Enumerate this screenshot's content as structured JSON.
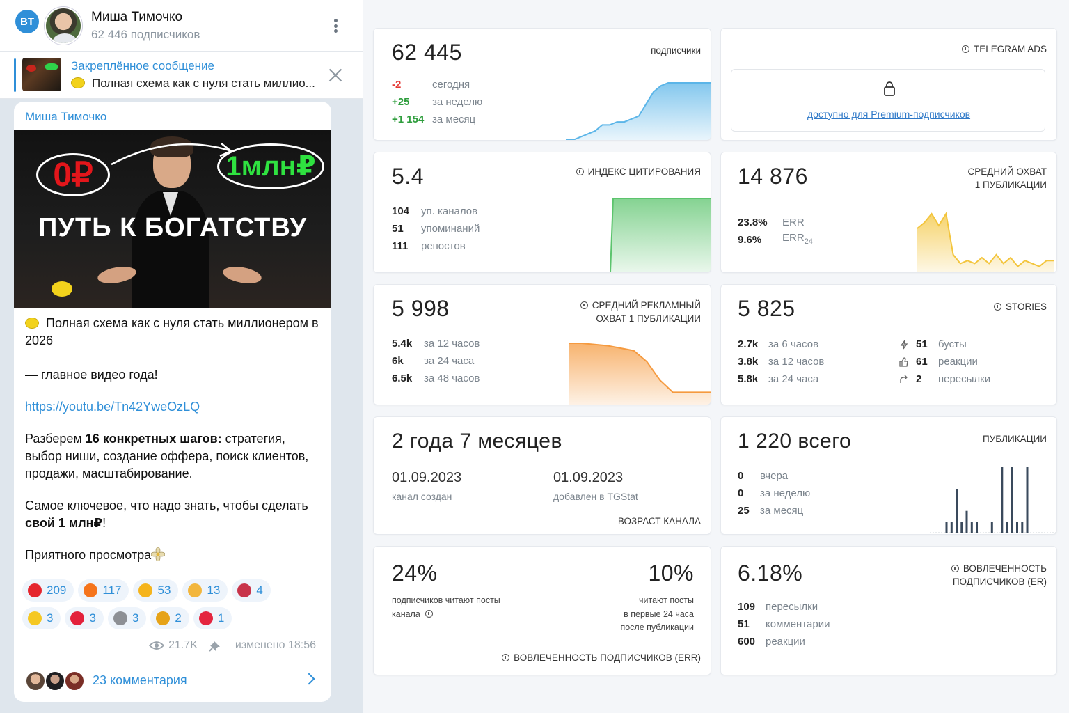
{
  "telegram": {
    "badge": "BT",
    "channel_name": "Миша Тимочко",
    "subscribers": "62 446 подписчиков",
    "pinned": {
      "title": "Закреплённое сообщение",
      "text": "Полная схема как с нуля стать миллио..."
    },
    "post": {
      "author": "Миша Тимочко",
      "image": {
        "zero": "0₽",
        "million": "1млн₽",
        "title": "ПУТЬ К БОГАТСТВУ"
      },
      "heading": "Полная схема как с нуля стать миллионером в 2026",
      "tagline": "— главное видео года!",
      "link": "https://youtu.be/Tn42YweOzLQ",
      "para1_prefix": "Разберем ",
      "para1_bold": "16 конкретных шагов:",
      "para1_rest": " стратегия, выбор ниши, создание оффера, поиск клиентов, продажи, масштабирование.",
      "para2_prefix": "Самое ключевое, что надо знать, чтобы сделать ",
      "para2_bold": "свой 1 млн₽",
      "para2_suffix": "!",
      "para3": "Приятного просмотра",
      "reactions_row1": [
        {
          "emoji": "heart",
          "color": "#e5262e",
          "count": "209"
        },
        {
          "emoji": "fire",
          "color": "#f5741c",
          "count": "117"
        },
        {
          "emoji": "lightning",
          "color": "#f5b41c",
          "count": "53"
        },
        {
          "emoji": "thumbs-up",
          "color": "#f2b63d",
          "count": "13"
        },
        {
          "emoji": "party",
          "color": "#c8344a",
          "count": "4"
        }
      ],
      "reactions_row2": [
        {
          "emoji": "star-struck",
          "color": "#f5c823",
          "count": "3"
        },
        {
          "emoji": "hundred",
          "color": "#e3213b",
          "count": "3"
        },
        {
          "emoji": "moai",
          "color": "#8d9095",
          "count": "3"
        },
        {
          "emoji": "trophy",
          "color": "#e6a318",
          "count": "2"
        },
        {
          "emoji": "kiss",
          "color": "#e4253f",
          "count": "1"
        }
      ],
      "views": "21.7K",
      "edited": "изменено 18:56",
      "comments": "23 комментария"
    }
  },
  "stats": {
    "subscribers": {
      "value": "62 445",
      "label": "подписчики",
      "rows": [
        {
          "value": "-2",
          "text": "сегодня",
          "kind": "neg"
        },
        {
          "value": "+25",
          "text": "за неделю",
          "kind": "pos"
        },
        {
          "value": "+1 154",
          "text": "за месяц",
          "kind": "pos"
        }
      ],
      "color": "#5bb5e8"
    },
    "ads": {
      "label": "TELEGRAM ADS",
      "premium": "доступно для Premium-подписчиков"
    },
    "citation": {
      "value": "5.4",
      "label": "ИНДЕКС ЦИТИРОВАНИЯ",
      "rows": [
        {
          "value": "104",
          "text": "уп. каналов"
        },
        {
          "value": "51",
          "text": "упоминаний"
        },
        {
          "value": "111",
          "text": "репостов"
        }
      ],
      "color": "#5cc46d"
    },
    "reach": {
      "value": "14 876",
      "label1": "СРЕДНИЙ ОХВАТ",
      "label2": "1 ПУБЛИКАЦИИ",
      "rows": [
        {
          "value": "23.8%",
          "text": "ERR"
        },
        {
          "value": "9.6%",
          "text": "ERR24"
        }
      ],
      "color": "#f3c53d"
    },
    "ad_reach": {
      "value": "5 998",
      "label1": "СРЕДНИЙ РЕКЛАМНЫЙ",
      "label2": "ОХВАТ 1 ПУБЛИКАЦИИ",
      "rows": [
        {
          "value": "5.4k",
          "text": "за 12 часов"
        },
        {
          "value": "6k",
          "text": "за 24 часа"
        },
        {
          "value": "6.5k",
          "text": "за 48 часов"
        }
      ],
      "color": "#f59a3f"
    },
    "stories": {
      "value": "5 825",
      "label": "STORIES",
      "rows": [
        {
          "value": "2.7k",
          "text": "за 6 часов"
        },
        {
          "value": "3.8k",
          "text": "за 12 часов"
        },
        {
          "value": "5.8k",
          "text": "за 24 часа"
        }
      ],
      "side": [
        {
          "icon": "boost-icon",
          "value": "51",
          "text": "бусты"
        },
        {
          "icon": "like-icon",
          "value": "61",
          "text": "реакции"
        },
        {
          "icon": "forward-icon",
          "value": "2",
          "text": "пересылки"
        }
      ]
    },
    "age": {
      "value": "2 года 7 месяцев",
      "created_date": "01.09.2023",
      "created_label": "канал создан",
      "added_date": "01.09.2023",
      "added_label": "добавлен в TGStat",
      "label": "ВОЗРАСТ КАНАЛА"
    },
    "posts": {
      "value": "1 220 всего",
      "label": "ПУБЛИКАЦИИ",
      "rows": [
        {
          "value": "0",
          "text": "вчера"
        },
        {
          "value": "0",
          "text": "за неделю"
        },
        {
          "value": "25",
          "text": "за месяц"
        }
      ],
      "color": "#3a4a5c"
    },
    "read": {
      "value_left": "24%",
      "text_left1": "подписчиков читают посты",
      "text_left2": "канала",
      "value_right": "10%",
      "text_right1": "читают посты",
      "text_right2": "в первые 24 часа",
      "text_right3": "после публикации",
      "label": "ВОВЛЕЧЕННОСТЬ ПОДПИСЧИКОВ (ERR)"
    },
    "er": {
      "value": "6.18%",
      "label1": "ВОВЛЕЧЕННОСТЬ",
      "label2": "ПОДПИСЧИКОВ (ER)",
      "rows": [
        {
          "value": "109",
          "text": "пересылки"
        },
        {
          "value": "51",
          "text": "комментарии"
        },
        {
          "value": "600",
          "text": "реакции"
        }
      ]
    }
  },
  "chart_data": [
    {
      "type": "area",
      "name": "subscribers",
      "values": [
        0,
        0,
        1,
        2,
        3,
        5,
        5,
        6,
        6,
        7,
        8,
        12,
        16,
        18,
        19,
        19,
        19,
        19,
        19,
        19,
        19
      ]
    },
    {
      "type": "area",
      "name": "citation",
      "values": [
        0,
        0,
        10,
        10,
        10,
        10,
        10,
        10,
        10,
        10
      ]
    },
    {
      "type": "area",
      "name": "reach",
      "values": [
        15,
        17,
        20,
        16,
        20,
        6,
        3,
        4,
        3,
        5,
        3,
        6,
        3,
        5,
        2,
        4,
        3,
        2,
        4,
        4
      ]
    },
    {
      "type": "area",
      "name": "ad_reach",
      "values": [
        10,
        10,
        9.8,
        9.6,
        9.2,
        8.8,
        7,
        4,
        2,
        2,
        2,
        2
      ]
    },
    {
      "type": "bar",
      "name": "posts",
      "values": [
        0,
        0,
        1,
        1,
        4,
        1,
        2,
        1,
        1,
        0,
        0,
        1,
        0,
        6,
        1,
        6,
        1,
        1,
        6,
        0,
        0,
        0,
        0,
        0
      ]
    }
  ]
}
